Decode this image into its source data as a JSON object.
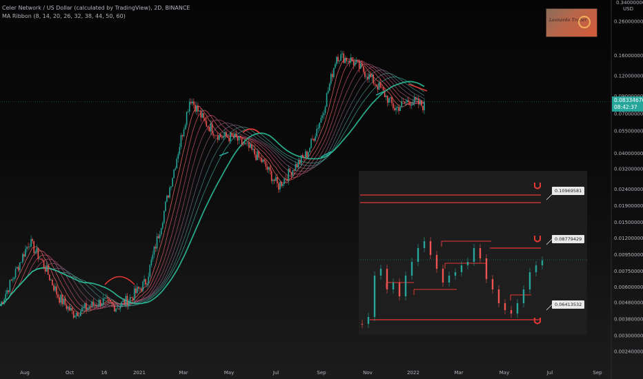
{
  "header": {
    "title": "Celer Network / US Dollar (calculated by TradingView), 2D, BINANCE",
    "indicator": "MA Ribbon (8, 14, 20, 26, 32, 38, 44, 50, 60)"
  },
  "price_axis": {
    "currency": "USD",
    "top_partial": "0.34000000",
    "current_price": "0.08334676",
    "countdown": "08:42:37"
  },
  "inset": {
    "levels": [
      "0.10969581",
      "0.08779429",
      "0.06413532"
    ]
  },
  "colors": {
    "up": "#26a69a",
    "down": "#ef5350",
    "annotation_red": "#e53935",
    "annotation_teal": "#26a69a",
    "ribbon_fast": "#e05a5a",
    "ribbon_slow": "#2ec4a0"
  },
  "chart_data": {
    "type": "candlestick",
    "log_scale": true,
    "y_ticks": [
      "0.26000000",
      "0.16000000",
      "0.12000000",
      "0.09000000",
      "0.07000000",
      "0.05500000",
      "0.04000000",
      "0.03200000",
      "0.02400000",
      "0.01900000",
      "0.01500000",
      "0.01200000",
      "0.00950000",
      "0.00750000",
      "0.00600000",
      "0.00480000",
      "0.00380000",
      "0.00300000",
      "0.00240000"
    ],
    "x_ticks": [
      "Aug",
      "Oct",
      "16",
      "2021",
      "Mar",
      "May",
      "Jul",
      "Sep",
      "Nov",
      "2022",
      "Mar",
      "May",
      "Jul",
      "Sep"
    ],
    "series": [
      {
        "name": "Celer Network / US Dollar",
        "points": [
          [
            "Aug",
            0.0046
          ],
          [
            "Aug",
            0.0072
          ],
          [
            "Sep",
            0.0115
          ],
          [
            "Sep",
            0.0082
          ],
          [
            "Oct",
            0.0052
          ],
          [
            "Nov",
            0.0041
          ],
          [
            "Nov",
            0.0045
          ],
          [
            "Dec",
            0.0049
          ],
          [
            "Dec",
            0.0045
          ],
          [
            "2021",
            0.0052
          ],
          [
            "Jan",
            0.0065
          ],
          [
            "Feb",
            0.0145
          ],
          [
            "Feb",
            0.035
          ],
          [
            "Mar",
            0.088
          ],
          [
            "Mar",
            0.062
          ],
          [
            "Apr",
            0.051
          ],
          [
            "May",
            0.05
          ],
          [
            "May",
            0.043
          ],
          [
            "Jun",
            0.035
          ],
          [
            "Jul",
            0.025
          ],
          [
            "Jul",
            0.032
          ],
          [
            "Aug",
            0.04
          ],
          [
            "Sep",
            0.068
          ],
          [
            "Sep",
            0.16
          ],
          [
            "Oct",
            0.15
          ],
          [
            "Nov",
            0.125
          ],
          [
            "Nov",
            0.1
          ],
          [
            "Dec",
            0.075
          ],
          [
            "Dec",
            0.085
          ],
          [
            "2022",
            0.078
          ]
        ]
      }
    ]
  }
}
